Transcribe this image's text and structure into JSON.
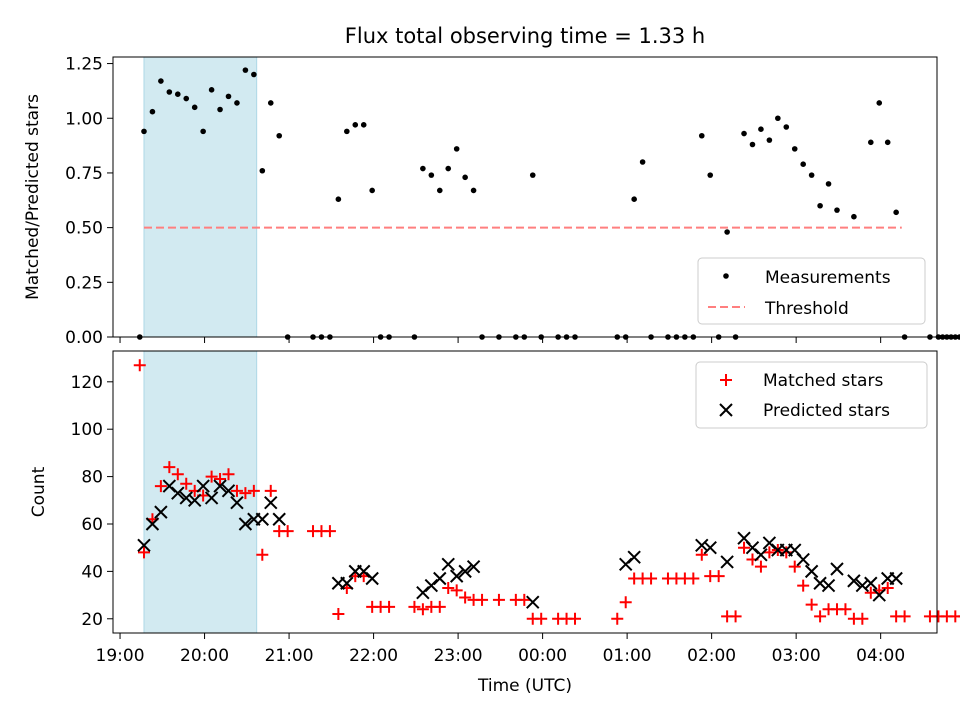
{
  "title": "Flux total observing time = 1.33 h",
  "colors": {
    "band": "#add8e6",
    "measurement": "#000000",
    "threshold": "#ff7f7f",
    "matched": "#ff0000",
    "predicted": "#000000"
  },
  "highlight_band": {
    "start": "19:17",
    "end": "20:37"
  },
  "x_axis": {
    "label": "Time (UTC)",
    "range": [
      "18:55",
      "04:40"
    ],
    "ticks": [
      "19:00",
      "20:00",
      "21:00",
      "22:00",
      "23:00",
      "00:00",
      "01:00",
      "02:00",
      "03:00",
      "04:00"
    ]
  },
  "chart_data": [
    {
      "type": "scatter",
      "name": "ratio-panel",
      "ylabel": "Matched/Predicted stars",
      "ylim": [
        0,
        1.28
      ],
      "yticks": [
        "0.00",
        "0.25",
        "0.50",
        "0.75",
        "1.00",
        "1.25"
      ],
      "legend": {
        "placement": "lower-right",
        "measurements_label": "Measurements",
        "threshold_label": "Threshold"
      },
      "threshold": {
        "y": 0.5,
        "x_start": "19:17",
        "x_end": "04:15"
      },
      "measurements": [
        [
          "19:14",
          0.0
        ],
        [
          "19:17",
          0.94
        ],
        [
          "19:23",
          1.03
        ],
        [
          "19:29",
          1.17
        ],
        [
          "19:35",
          1.12
        ],
        [
          "19:41",
          1.11
        ],
        [
          "19:47",
          1.09
        ],
        [
          "19:53",
          1.05
        ],
        [
          "19:59",
          0.94
        ],
        [
          "20:05",
          1.13
        ],
        [
          "20:11",
          1.04
        ],
        [
          "20:17",
          1.1
        ],
        [
          "20:23",
          1.07
        ],
        [
          "20:29",
          1.22
        ],
        [
          "20:35",
          1.2
        ],
        [
          "20:41",
          0.76
        ],
        [
          "20:47",
          1.07
        ],
        [
          "20:53",
          0.92
        ],
        [
          "20:59",
          0.0
        ],
        [
          "21:17",
          0.0
        ],
        [
          "21:23",
          0.0
        ],
        [
          "21:29",
          0.0
        ],
        [
          "21:35",
          0.63
        ],
        [
          "21:41",
          0.94
        ],
        [
          "21:47",
          0.97
        ],
        [
          "21:53",
          0.97
        ],
        [
          "21:59",
          0.67
        ],
        [
          "22:05",
          0.0
        ],
        [
          "22:11",
          0.0
        ],
        [
          "22:29",
          0.0
        ],
        [
          "22:35",
          0.77
        ],
        [
          "22:41",
          0.74
        ],
        [
          "22:47",
          0.67
        ],
        [
          "22:53",
          0.77
        ],
        [
          "22:59",
          0.86
        ],
        [
          "23:05",
          0.73
        ],
        [
          "23:11",
          0.67
        ],
        [
          "23:17",
          0.0
        ],
        [
          "23:29",
          0.0
        ],
        [
          "23:41",
          0.0
        ],
        [
          "23:47",
          0.0
        ],
        [
          "23:53",
          0.74
        ],
        [
          "23:59",
          0.0
        ],
        [
          "00:11",
          0.0
        ],
        [
          "00:17",
          0.0
        ],
        [
          "00:23",
          0.0
        ],
        [
          "00:53",
          0.0
        ],
        [
          "00:59",
          0.0
        ],
        [
          "01:05",
          0.63
        ],
        [
          "01:11",
          0.8
        ],
        [
          "01:17",
          0.0
        ],
        [
          "01:29",
          0.0
        ],
        [
          "01:35",
          0.0
        ],
        [
          "01:41",
          0.0
        ],
        [
          "01:47",
          0.0
        ],
        [
          "01:53",
          0.92
        ],
        [
          "01:59",
          0.74
        ],
        [
          "02:05",
          0.0
        ],
        [
          "02:11",
          0.48
        ],
        [
          "02:17",
          0.0
        ],
        [
          "02:23",
          0.93
        ],
        [
          "02:29",
          0.88
        ],
        [
          "02:35",
          0.95
        ],
        [
          "02:41",
          0.9
        ],
        [
          "02:47",
          1.0
        ],
        [
          "02:53",
          0.96
        ],
        [
          "02:59",
          0.86
        ],
        [
          "03:05",
          0.79
        ],
        [
          "03:11",
          0.74
        ],
        [
          "03:17",
          0.6
        ],
        [
          "03:23",
          0.7
        ],
        [
          "03:29",
          0.58
        ],
        [
          "03:41",
          0.55
        ],
        [
          "03:53",
          0.89
        ],
        [
          "03:59",
          1.07
        ],
        [
          "04:05",
          0.89
        ],
        [
          "04:11",
          0.57
        ],
        [
          "04:17",
          0.0
        ],
        [
          "04:35",
          0.0
        ],
        [
          "04:41",
          0.0
        ],
        [
          "04:44",
          0.0
        ],
        [
          "04:47",
          0.0
        ],
        [
          "04:50",
          0.0
        ],
        [
          "04:53",
          0.0
        ],
        [
          "04:56",
          0.0
        ],
        [
          "04:59",
          0.0
        ],
        [
          "05:02",
          0.0
        ],
        [
          "05:05",
          0.0
        ]
      ]
    },
    {
      "type": "scatter",
      "name": "count-panel",
      "ylabel": "Count",
      "ylim": [
        14,
        133
      ],
      "yticks": [
        "20",
        "40",
        "60",
        "80",
        "100",
        "120"
      ],
      "legend": {
        "placement": "upper-right"
      },
      "series": [
        {
          "name": "Matched stars",
          "marker": "plus",
          "points": [
            [
              "19:14",
              127
            ],
            [
              "19:17",
              48
            ],
            [
              "19:23",
              62
            ],
            [
              "19:29",
              76
            ],
            [
              "19:35",
              84
            ],
            [
              "19:41",
              81
            ],
            [
              "19:47",
              77
            ],
            [
              "19:53",
              74
            ],
            [
              "19:59",
              72
            ],
            [
              "20:05",
              80
            ],
            [
              "20:11",
              79
            ],
            [
              "20:17",
              81
            ],
            [
              "20:23",
              74
            ],
            [
              "20:29",
              73
            ],
            [
              "20:35",
              74
            ],
            [
              "20:41",
              47
            ],
            [
              "20:47",
              74
            ],
            [
              "20:53",
              57
            ],
            [
              "20:59",
              57
            ],
            [
              "21:17",
              57
            ],
            [
              "21:23",
              57
            ],
            [
              "21:29",
              57
            ],
            [
              "21:35",
              22
            ],
            [
              "21:41",
              33
            ],
            [
              "21:47",
              38
            ],
            [
              "21:53",
              38
            ],
            [
              "21:59",
              25
            ],
            [
              "22:05",
              25
            ],
            [
              "22:11",
              25
            ],
            [
              "22:29",
              25
            ],
            [
              "22:35",
              24
            ],
            [
              "22:41",
              25
            ],
            [
              "22:47",
              25
            ],
            [
              "22:53",
              33
            ],
            [
              "22:59",
              32
            ],
            [
              "23:05",
              29
            ],
            [
              "23:11",
              28
            ],
            [
              "23:17",
              28
            ],
            [
              "23:29",
              28
            ],
            [
              "23:41",
              28
            ],
            [
              "23:47",
              28
            ],
            [
              "23:53",
              20
            ],
            [
              "23:59",
              20
            ],
            [
              "00:11",
              20
            ],
            [
              "00:17",
              20
            ],
            [
              "00:23",
              20
            ],
            [
              "00:53",
              20
            ],
            [
              "00:59",
              27
            ],
            [
              "01:05",
              37
            ],
            [
              "01:11",
              37
            ],
            [
              "01:17",
              37
            ],
            [
              "01:29",
              37
            ],
            [
              "01:35",
              37
            ],
            [
              "01:41",
              37
            ],
            [
              "01:47",
              37
            ],
            [
              "01:53",
              47
            ],
            [
              "01:59",
              38
            ],
            [
              "02:05",
              38
            ],
            [
              "02:11",
              21
            ],
            [
              "02:17",
              21
            ],
            [
              "02:23",
              50
            ],
            [
              "02:29",
              45
            ],
            [
              "02:35",
              42
            ],
            [
              "02:41",
              48
            ],
            [
              "02:47",
              49
            ],
            [
              "02:53",
              48
            ],
            [
              "02:59",
              42
            ],
            [
              "03:05",
              34
            ],
            [
              "03:11",
              26
            ],
            [
              "03:17",
              21
            ],
            [
              "03:23",
              24
            ],
            [
              "03:29",
              24
            ],
            [
              "03:35",
              24
            ],
            [
              "03:41",
              20
            ],
            [
              "03:47",
              20
            ],
            [
              "03:53",
              31
            ],
            [
              "03:59",
              32
            ],
            [
              "04:05",
              33
            ],
            [
              "04:11",
              21
            ],
            [
              "04:17",
              21
            ],
            [
              "04:35",
              21
            ],
            [
              "04:41",
              21
            ],
            [
              "04:47",
              21
            ],
            [
              "04:53",
              21
            ],
            [
              "04:59",
              21
            ],
            [
              "05:05",
              21
            ]
          ]
        },
        {
          "name": "Predicted stars",
          "marker": "x",
          "points": [
            [
              "19:17",
              51
            ],
            [
              "19:23",
              60
            ],
            [
              "19:29",
              65
            ],
            [
              "19:35",
              76
            ],
            [
              "19:41",
              73
            ],
            [
              "19:47",
              71
            ],
            [
              "19:53",
              70
            ],
            [
              "19:59",
              76
            ],
            [
              "20:05",
              71
            ],
            [
              "20:11",
              76
            ],
            [
              "20:17",
              74
            ],
            [
              "20:23",
              69
            ],
            [
              "20:29",
              60
            ],
            [
              "20:35",
              62
            ],
            [
              "20:41",
              62
            ],
            [
              "20:47",
              69
            ],
            [
              "20:53",
              62
            ],
            [
              "21:35",
              35
            ],
            [
              "21:41",
              35
            ],
            [
              "21:47",
              40
            ],
            [
              "21:53",
              40
            ],
            [
              "21:59",
              37
            ],
            [
              "22:35",
              31
            ],
            [
              "22:41",
              34
            ],
            [
              "22:47",
              37
            ],
            [
              "22:53",
              43
            ],
            [
              "22:59",
              38
            ],
            [
              "23:05",
              40
            ],
            [
              "23:11",
              42
            ],
            [
              "23:53",
              27
            ],
            [
              "00:59",
              43
            ],
            [
              "01:05",
              46
            ],
            [
              "01:53",
              51
            ],
            [
              "01:59",
              50
            ],
            [
              "02:11",
              44
            ],
            [
              "02:23",
              54
            ],
            [
              "02:29",
              50
            ],
            [
              "02:35",
              47
            ],
            [
              "02:41",
              52
            ],
            [
              "02:47",
              49
            ],
            [
              "02:53",
              49
            ],
            [
              "02:59",
              49
            ],
            [
              "03:05",
              45
            ],
            [
              "03:11",
              40
            ],
            [
              "03:17",
              35
            ],
            [
              "03:23",
              34
            ],
            [
              "03:29",
              41
            ],
            [
              "03:41",
              36
            ],
            [
              "03:47",
              34
            ],
            [
              "03:53",
              35
            ],
            [
              "03:59",
              30
            ],
            [
              "04:05",
              37
            ],
            [
              "04:11",
              37
            ]
          ]
        }
      ]
    }
  ]
}
